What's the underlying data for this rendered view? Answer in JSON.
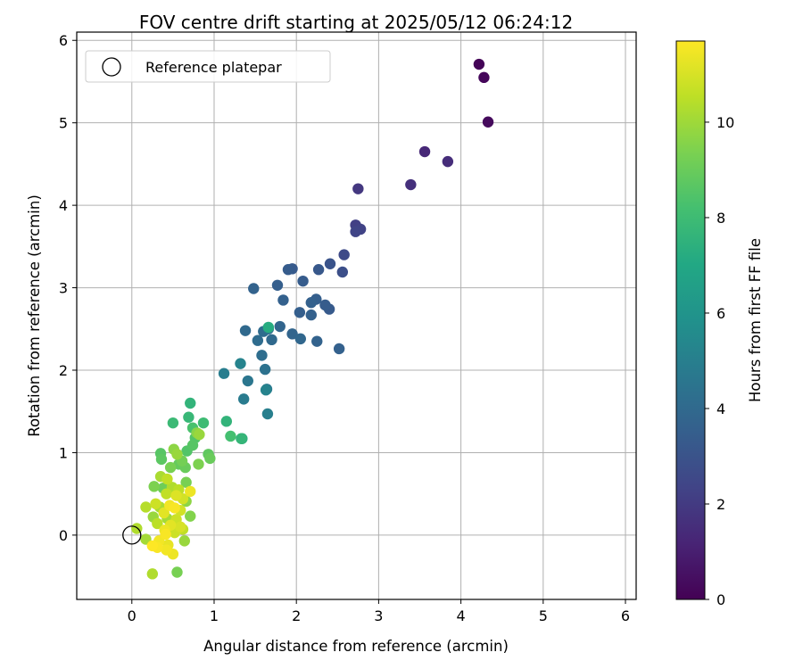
{
  "chart_data": {
    "type": "scatter",
    "title": "FOV centre drift starting at 2025/05/12 06:24:12",
    "xlabel": "Angular distance from reference (arcmin)",
    "ylabel": "Rotation from reference (arcmin)",
    "xlim": [
      -0.67,
      6.13
    ],
    "ylim": [
      -0.78,
      6.1
    ],
    "x_ticks": [
      0,
      1,
      2,
      3,
      4,
      5,
      6
    ],
    "y_ticks": [
      0,
      1,
      2,
      3,
      4,
      5,
      6
    ],
    "grid": true,
    "legend": {
      "placement": "top-left",
      "entries": [
        "Reference platepar"
      ]
    },
    "reference_point": {
      "x": 0.0,
      "y": 0.0
    },
    "colorbar": {
      "label": "Hours from first FF file",
      "range": [
        0,
        11.7
      ],
      "ticks": [
        0,
        2,
        4,
        6,
        8,
        10
      ],
      "colormap": "viridis"
    },
    "points": [
      {
        "x": 4.22,
        "y": 5.71,
        "c": 0.1
      },
      {
        "x": 4.28,
        "y": 5.55,
        "c": 0.2
      },
      {
        "x": 4.33,
        "y": 5.01,
        "c": 0.3
      },
      {
        "x": 3.56,
        "y": 4.65,
        "c": 1.3
      },
      {
        "x": 3.84,
        "y": 4.53,
        "c": 1.5
      },
      {
        "x": 3.39,
        "y": 4.25,
        "c": 1.6
      },
      {
        "x": 2.75,
        "y": 4.2,
        "c": 1.9
      },
      {
        "x": 2.72,
        "y": 3.76,
        "c": 2.2
      },
      {
        "x": 2.78,
        "y": 3.71,
        "c": 2.3
      },
      {
        "x": 2.72,
        "y": 3.68,
        "c": 2.4
      },
      {
        "x": 2.58,
        "y": 3.4,
        "c": 2.6
      },
      {
        "x": 2.56,
        "y": 3.19,
        "c": 2.8
      },
      {
        "x": 2.41,
        "y": 3.29,
        "c": 3.0
      },
      {
        "x": 2.27,
        "y": 3.22,
        "c": 3.2
      },
      {
        "x": 1.95,
        "y": 3.23,
        "c": 3.3
      },
      {
        "x": 1.9,
        "y": 3.22,
        "c": 3.4
      },
      {
        "x": 2.08,
        "y": 3.08,
        "c": 3.4
      },
      {
        "x": 1.77,
        "y": 3.03,
        "c": 3.5
      },
      {
        "x": 1.48,
        "y": 2.99,
        "c": 3.7
      },
      {
        "x": 1.84,
        "y": 2.85,
        "c": 3.6
      },
      {
        "x": 2.24,
        "y": 2.86,
        "c": 3.5
      },
      {
        "x": 2.18,
        "y": 2.82,
        "c": 3.6
      },
      {
        "x": 2.35,
        "y": 2.79,
        "c": 3.4
      },
      {
        "x": 2.4,
        "y": 2.74,
        "c": 3.3
      },
      {
        "x": 2.04,
        "y": 2.7,
        "c": 3.5
      },
      {
        "x": 2.18,
        "y": 2.67,
        "c": 3.6
      },
      {
        "x": 1.8,
        "y": 2.53,
        "c": 3.8
      },
      {
        "x": 1.38,
        "y": 2.48,
        "c": 4.0
      },
      {
        "x": 1.6,
        "y": 2.47,
        "c": 4.1
      },
      {
        "x": 1.66,
        "y": 2.5,
        "c": 4.3
      },
      {
        "x": 1.7,
        "y": 2.37,
        "c": 4.0
      },
      {
        "x": 1.53,
        "y": 2.36,
        "c": 4.1
      },
      {
        "x": 1.95,
        "y": 2.44,
        "c": 3.8
      },
      {
        "x": 2.05,
        "y": 2.38,
        "c": 3.9
      },
      {
        "x": 2.25,
        "y": 2.35,
        "c": 3.7
      },
      {
        "x": 2.52,
        "y": 2.26,
        "c": 3.6
      },
      {
        "x": 1.58,
        "y": 2.18,
        "c": 4.2
      },
      {
        "x": 1.62,
        "y": 2.01,
        "c": 4.4
      },
      {
        "x": 1.12,
        "y": 1.96,
        "c": 4.9
      },
      {
        "x": 1.32,
        "y": 2.08,
        "c": 5.2
      },
      {
        "x": 1.41,
        "y": 1.87,
        "c": 4.6
      },
      {
        "x": 1.64,
        "y": 1.77,
        "c": 4.7
      },
      {
        "x": 1.63,
        "y": 1.76,
        "c": 5.2
      },
      {
        "x": 1.36,
        "y": 1.65,
        "c": 4.8
      },
      {
        "x": 1.65,
        "y": 1.47,
        "c": 5.0
      },
      {
        "x": 1.66,
        "y": 2.52,
        "c": 7.2
      },
      {
        "x": 0.71,
        "y": 1.6,
        "c": 7.6
      },
      {
        "x": 0.69,
        "y": 1.43,
        "c": 7.8
      },
      {
        "x": 0.5,
        "y": 1.36,
        "c": 7.9
      },
      {
        "x": 0.87,
        "y": 1.36,
        "c": 8.0
      },
      {
        "x": 1.15,
        "y": 1.38,
        "c": 7.6
      },
      {
        "x": 0.74,
        "y": 1.3,
        "c": 8.3
      },
      {
        "x": 0.79,
        "y": 1.24,
        "c": 9.6
      },
      {
        "x": 0.82,
        "y": 1.22,
        "c": 9.9
      },
      {
        "x": 1.2,
        "y": 1.2,
        "c": 8.2
      },
      {
        "x": 1.33,
        "y": 1.17,
        "c": 7.7
      },
      {
        "x": 1.34,
        "y": 1.17,
        "c": 7.4
      },
      {
        "x": 0.77,
        "y": 1.18,
        "c": 8.5
      },
      {
        "x": 0.74,
        "y": 1.09,
        "c": 8.6
      },
      {
        "x": 0.67,
        "y": 1.02,
        "c": 8.5
      },
      {
        "x": 0.51,
        "y": 1.04,
        "c": 9.7
      },
      {
        "x": 0.55,
        "y": 0.98,
        "c": 9.9
      },
      {
        "x": 0.35,
        "y": 0.99,
        "c": 8.6
      },
      {
        "x": 0.36,
        "y": 0.92,
        "c": 8.7
      },
      {
        "x": 0.93,
        "y": 0.98,
        "c": 8.8
      },
      {
        "x": 0.95,
        "y": 0.93,
        "c": 9.0
      },
      {
        "x": 0.61,
        "y": 0.9,
        "c": 9.2
      },
      {
        "x": 0.57,
        "y": 0.86,
        "c": 8.9
      },
      {
        "x": 0.47,
        "y": 0.82,
        "c": 9.3
      },
      {
        "x": 0.81,
        "y": 0.86,
        "c": 9.4
      },
      {
        "x": 0.65,
        "y": 0.82,
        "c": 9.0
      },
      {
        "x": 0.35,
        "y": 0.71,
        "c": 10.2
      },
      {
        "x": 0.43,
        "y": 0.68,
        "c": 10.6
      },
      {
        "x": 0.66,
        "y": 0.64,
        "c": 9.3
      },
      {
        "x": 0.27,
        "y": 0.59,
        "c": 9.4
      },
      {
        "x": 0.38,
        "y": 0.57,
        "c": 9.1
      },
      {
        "x": 0.49,
        "y": 0.58,
        "c": 10.3
      },
      {
        "x": 0.57,
        "y": 0.55,
        "c": 10.5
      },
      {
        "x": 0.71,
        "y": 0.53,
        "c": 11.4
      },
      {
        "x": 0.42,
        "y": 0.5,
        "c": 10.6
      },
      {
        "x": 0.54,
        "y": 0.48,
        "c": 11.1
      },
      {
        "x": 0.62,
        "y": 0.44,
        "c": 10.9
      },
      {
        "x": 0.66,
        "y": 0.41,
        "c": 9.7
      },
      {
        "x": 0.29,
        "y": 0.38,
        "c": 10.8
      },
      {
        "x": 0.17,
        "y": 0.34,
        "c": 10.4
      },
      {
        "x": 0.34,
        "y": 0.34,
        "c": 10.2
      },
      {
        "x": 0.46,
        "y": 0.36,
        "c": 11.5
      },
      {
        "x": 0.52,
        "y": 0.33,
        "c": 11.6
      },
      {
        "x": 0.59,
        "y": 0.3,
        "c": 10.9
      },
      {
        "x": 0.39,
        "y": 0.27,
        "c": 11.2
      },
      {
        "x": 0.26,
        "y": 0.22,
        "c": 9.9
      },
      {
        "x": 0.43,
        "y": 0.2,
        "c": 10.1
      },
      {
        "x": 0.54,
        "y": 0.19,
        "c": 10.8
      },
      {
        "x": 0.71,
        "y": 0.23,
        "c": 9.5
      },
      {
        "x": 0.31,
        "y": 0.14,
        "c": 10.5
      },
      {
        "x": 0.47,
        "y": 0.12,
        "c": 11.2
      },
      {
        "x": 0.59,
        "y": 0.1,
        "c": 11.0
      },
      {
        "x": 0.4,
        "y": 0.06,
        "c": 11.4
      },
      {
        "x": 0.62,
        "y": 0.07,
        "c": 10.6
      },
      {
        "x": 0.52,
        "y": 0.03,
        "c": 10.8
      },
      {
        "x": 0.06,
        "y": 0.08,
        "c": 10.3
      },
      {
        "x": 0.41,
        "y": 0.01,
        "c": 11.6
      },
      {
        "x": 0.17,
        "y": -0.05,
        "c": 10.1
      },
      {
        "x": 0.33,
        "y": -0.07,
        "c": 11.5
      },
      {
        "x": 0.64,
        "y": -0.07,
        "c": 9.9
      },
      {
        "x": 0.44,
        "y": -0.12,
        "c": 11.3
      },
      {
        "x": 0.25,
        "y": -0.13,
        "c": 11.7
      },
      {
        "x": 0.31,
        "y": -0.15,
        "c": 11.6
      },
      {
        "x": 0.42,
        "y": -0.18,
        "c": 11.5
      },
      {
        "x": 0.5,
        "y": -0.23,
        "c": 11.4
      },
      {
        "x": 0.25,
        "y": -0.47,
        "c": 10.3
      },
      {
        "x": 0.55,
        "y": -0.45,
        "c": 9.3
      }
    ]
  }
}
